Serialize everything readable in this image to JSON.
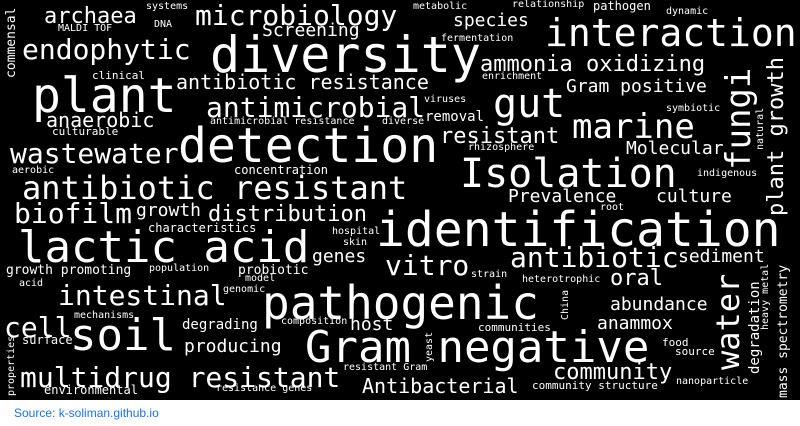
{
  "colors": {
    "background": "#000000",
    "text": "#ffffff",
    "link": "#1a73e8"
  },
  "words": [
    "diversity",
    "identification",
    "detection",
    "pathogenic",
    "lactic acid",
    "Gram negative",
    "plant",
    "interaction",
    "Isolation",
    "gut",
    "antibiotic resistant",
    "marine",
    "soil",
    "water",
    "fungi",
    "multidrug resistant",
    "antimicrobial",
    "endophytic",
    "microbiology",
    "wastewater",
    "intestinal",
    "biofilm",
    "vitro",
    "antibiotic",
    "archaea",
    "ammonia oxidizing",
    "antibiotic resistance",
    "Gram positive",
    "plant growth",
    "community",
    "cell",
    "distribution",
    "resistant",
    "Prevalence",
    "Molecular",
    "Antibacterial",
    "oral",
    "producing",
    "abundance",
    "host",
    "anaerobic",
    "Screening",
    "species",
    "genes",
    "growth",
    "sediment",
    "culture",
    "degrading",
    "anammox",
    "degradation",
    "mass spectrometry",
    "commensal",
    "growth promoting",
    "characteristics",
    "probiotic",
    "removal",
    "environmental",
    "surface",
    "community structure",
    "communities",
    "source",
    "food",
    "systems",
    "metabolic",
    "relationship",
    "pathogen",
    "dynamic",
    "fermentation",
    "MALDI TOF",
    "DNA",
    "clinical",
    "enrichment",
    "symbiotic",
    "viruses",
    "culturable",
    "antimicrobial resistance",
    "diverse",
    "rhizosphere",
    "natural",
    "aerobic",
    "concentration",
    "indigenous",
    "root",
    "hospital",
    "skin",
    "population",
    "strain",
    "heterotrophic",
    "China",
    "heavy metal",
    "acid",
    "model",
    "genomic",
    "mechanisms",
    "composition",
    "yeast",
    "resistant Gram",
    "resistance genes",
    "nanoparticle",
    "properties"
  ],
  "source": {
    "label": "Source: k-soliman.github.io"
  }
}
